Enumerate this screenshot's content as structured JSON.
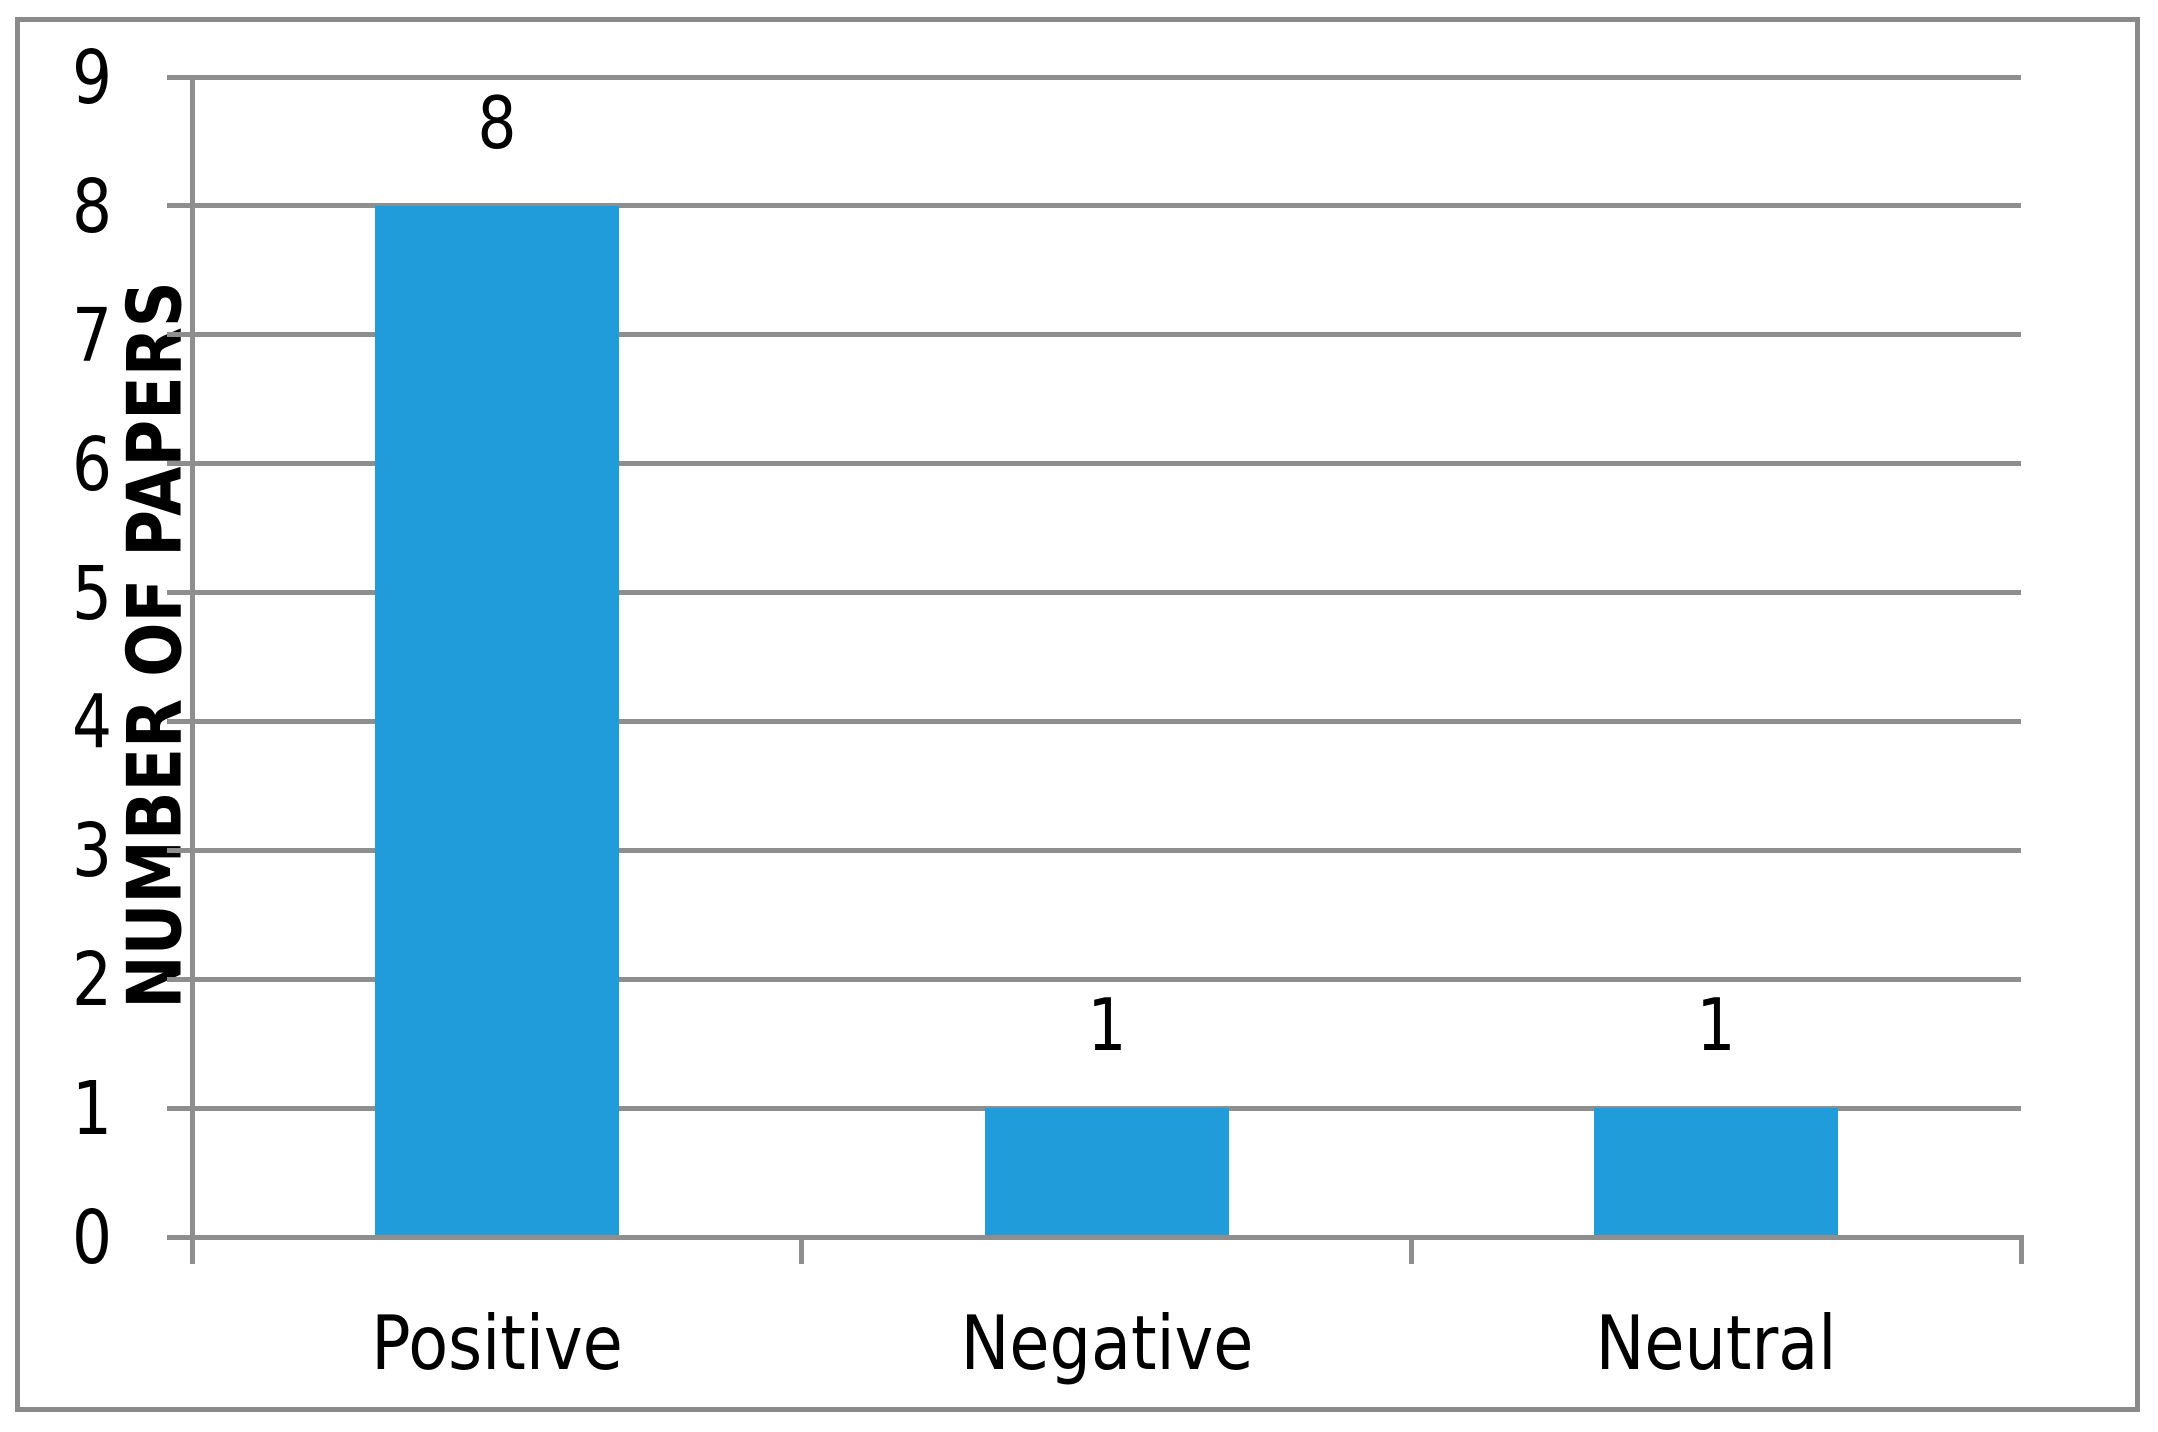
{
  "chart_data": {
    "type": "bar",
    "categories": [
      "Positive",
      "Negative",
      "Neutral"
    ],
    "values": [
      8,
      1,
      1
    ],
    "data_labels": [
      "8",
      "1",
      "1"
    ],
    "title": "",
    "xlabel": "",
    "ylabel": "NUMBER OF PAPERS",
    "ylim": [
      0,
      9
    ],
    "yticks": [
      0,
      1,
      2,
      3,
      4,
      5,
      6,
      7,
      8,
      9
    ],
    "grid": "horizontal",
    "legend": "none",
    "colors": {
      "bar": "#1f9cd9",
      "gridline": "#8e8e8e",
      "axis": "#8e8e8e",
      "border": "#8a8a8a",
      "text": "#000000",
      "background": "#ffffff"
    }
  }
}
